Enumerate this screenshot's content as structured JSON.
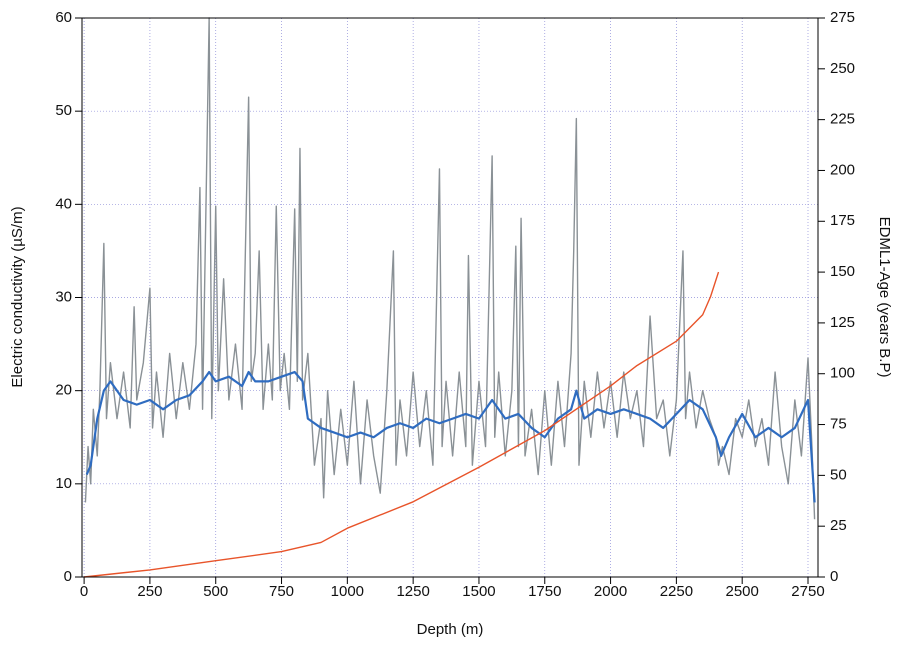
{
  "chart_data": {
    "type": "line",
    "xlabel": "Depth (m)",
    "ylabel": "Electric conductivity (µS/m)",
    "y2label": "EDML1-Age (years B.P)",
    "xlim": [
      -8,
      2788
    ],
    "xticks": [
      0,
      250,
      500,
      750,
      1000,
      1250,
      1500,
      1750,
      2000,
      2250,
      2500,
      2750
    ],
    "ylim": [
      0,
      60
    ],
    "yticks": [
      0,
      10,
      20,
      30,
      40,
      50,
      60
    ],
    "y2lim": [
      0,
      275
    ],
    "y2ticks": [
      0,
      25,
      50,
      75,
      100,
      125,
      150,
      175,
      200,
      225,
      250,
      275
    ],
    "grid": true,
    "series": [
      {
        "color": "#8a9196",
        "x": [
          5,
          15,
          25,
          35,
          50,
          60,
          75,
          85,
          100,
          125,
          150,
          175,
          190,
          200,
          225,
          250,
          260,
          275,
          300,
          325,
          350,
          375,
          400,
          425,
          440,
          450,
          475,
          485,
          500,
          510,
          530,
          550,
          575,
          600,
          625,
          635,
          650,
          665,
          680,
          700,
          715,
          730,
          745,
          760,
          780,
          800,
          810,
          820,
          830,
          850,
          875,
          900,
          910,
          925,
          950,
          975,
          1000,
          1025,
          1050,
          1075,
          1100,
          1125,
          1150,
          1175,
          1185,
          1200,
          1225,
          1250,
          1275,
          1300,
          1325,
          1350,
          1360,
          1375,
          1400,
          1425,
          1450,
          1460,
          1475,
          1500,
          1525,
          1550,
          1560,
          1575,
          1600,
          1625,
          1640,
          1650,
          1660,
          1675,
          1700,
          1725,
          1750,
          1775,
          1800,
          1825,
          1850,
          1860,
          1870,
          1880,
          1900,
          1925,
          1950,
          1975,
          2000,
          2025,
          2050,
          2075,
          2100,
          2125,
          2150,
          2175,
          2200,
          2225,
          2250,
          2275,
          2285,
          2300,
          2325,
          2350,
          2375,
          2400,
          2410,
          2425,
          2450,
          2475,
          2500,
          2525,
          2550,
          2575,
          2600,
          2625,
          2650,
          2675,
          2700,
          2725,
          2750,
          2765,
          2775
        ],
        "values": [
          8,
          14,
          10,
          18,
          13,
          20,
          35.8,
          17,
          23,
          17,
          22,
          16,
          29,
          19,
          23,
          31,
          16,
          22,
          15,
          24,
          17,
          23,
          18,
          25,
          41.8,
          18,
          60,
          17,
          39.8,
          20,
          32,
          19,
          25,
          18,
          51.5,
          21,
          24,
          35,
          18,
          25,
          19,
          39.8,
          20,
          24,
          18,
          39.5,
          21,
          46,
          19,
          24,
          12,
          17,
          8.5,
          20,
          11,
          18,
          12,
          21,
          10,
          19,
          13,
          9,
          20,
          35,
          12,
          19,
          13,
          22,
          14,
          20,
          12,
          43.8,
          14,
          21,
          13,
          22,
          14,
          34.5,
          12,
          21,
          14,
          45.2,
          15,
          22,
          13,
          20,
          35.5,
          14,
          38.5,
          13,
          18,
          11,
          20,
          12,
          21,
          14,
          24,
          35,
          49.2,
          12,
          21,
          15,
          22,
          16,
          21,
          15,
          22,
          17,
          20,
          14,
          28,
          17,
          19,
          13,
          19,
          35,
          17,
          22,
          16,
          20,
          17,
          15,
          12,
          14,
          11,
          17,
          15,
          19,
          14,
          17,
          12,
          22,
          14,
          10,
          19,
          13,
          23.5,
          14,
          6.2
        ]
      },
      {
        "color": "#2f6cc0",
        "x": [
          10,
          25,
          50,
          75,
          100,
          150,
          200,
          250,
          300,
          350,
          400,
          450,
          475,
          500,
          550,
          600,
          625,
          650,
          700,
          750,
          800,
          830,
          850,
          900,
          950,
          1000,
          1050,
          1100,
          1150,
          1200,
          1250,
          1300,
          1350,
          1400,
          1450,
          1500,
          1550,
          1600,
          1650,
          1700,
          1750,
          1800,
          1850,
          1870,
          1900,
          1950,
          2000,
          2050,
          2100,
          2150,
          2200,
          2250,
          2300,
          2350,
          2400,
          2420,
          2450,
          2500,
          2550,
          2600,
          2650,
          2700,
          2750,
          2775
        ],
        "values": [
          11,
          12,
          17,
          20,
          21,
          19,
          18.5,
          19,
          18,
          19,
          19.5,
          21,
          22,
          21,
          21.5,
          20.5,
          22,
          21,
          21,
          21.5,
          22,
          21,
          17,
          16,
          15.5,
          15,
          15.5,
          15,
          16,
          16.5,
          16,
          17,
          16.5,
          17,
          17.5,
          17,
          19,
          17,
          17.5,
          16,
          15,
          17,
          18,
          20,
          17,
          18,
          17.5,
          18,
          17.5,
          17,
          16,
          17.5,
          19,
          18,
          15,
          13,
          15,
          17.5,
          15,
          16,
          15,
          16,
          19,
          8
        ]
      },
      {
        "color": "#e8542a",
        "axis": "y2",
        "x": [
          0,
          250,
          500,
          750,
          900,
          1000,
          1250,
          1500,
          1750,
          2000,
          2100,
          2250,
          2350,
          2380,
          2410
        ],
        "values": [
          0,
          3.5,
          8,
          12.5,
          17,
          24,
          37,
          54,
          72,
          94,
          104,
          116,
          129,
          138,
          150
        ]
      }
    ]
  }
}
